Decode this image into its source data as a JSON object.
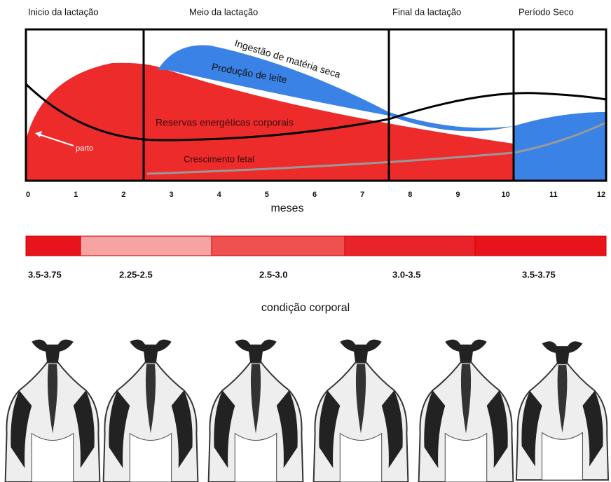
{
  "phases": [
    "Inicio da lactação",
    "Meio da lactação",
    "Final  da lactação",
    "Período Seco"
  ],
  "axis": {
    "months": [
      0,
      1,
      2,
      3,
      4,
      5,
      6,
      7,
      8,
      9,
      10,
      11,
      12
    ],
    "label": "meses"
  },
  "curves": {
    "intake": "Ingestão de matéria seca",
    "milk": "Produção de leite",
    "reserves": "Reservas energéticas corporais",
    "fetal": "Crescimento fetal",
    "calving": "parto"
  },
  "score_bar": {
    "segments": [
      {
        "label": "3.5-3.75"
      },
      {
        "label": "2.25-2.5"
      },
      {
        "label": "2.5-3.0"
      },
      {
        "label": "3.0-3.5"
      },
      {
        "label": "3.5-3.75"
      }
    ]
  },
  "body_condition_label": "condição corporal"
}
